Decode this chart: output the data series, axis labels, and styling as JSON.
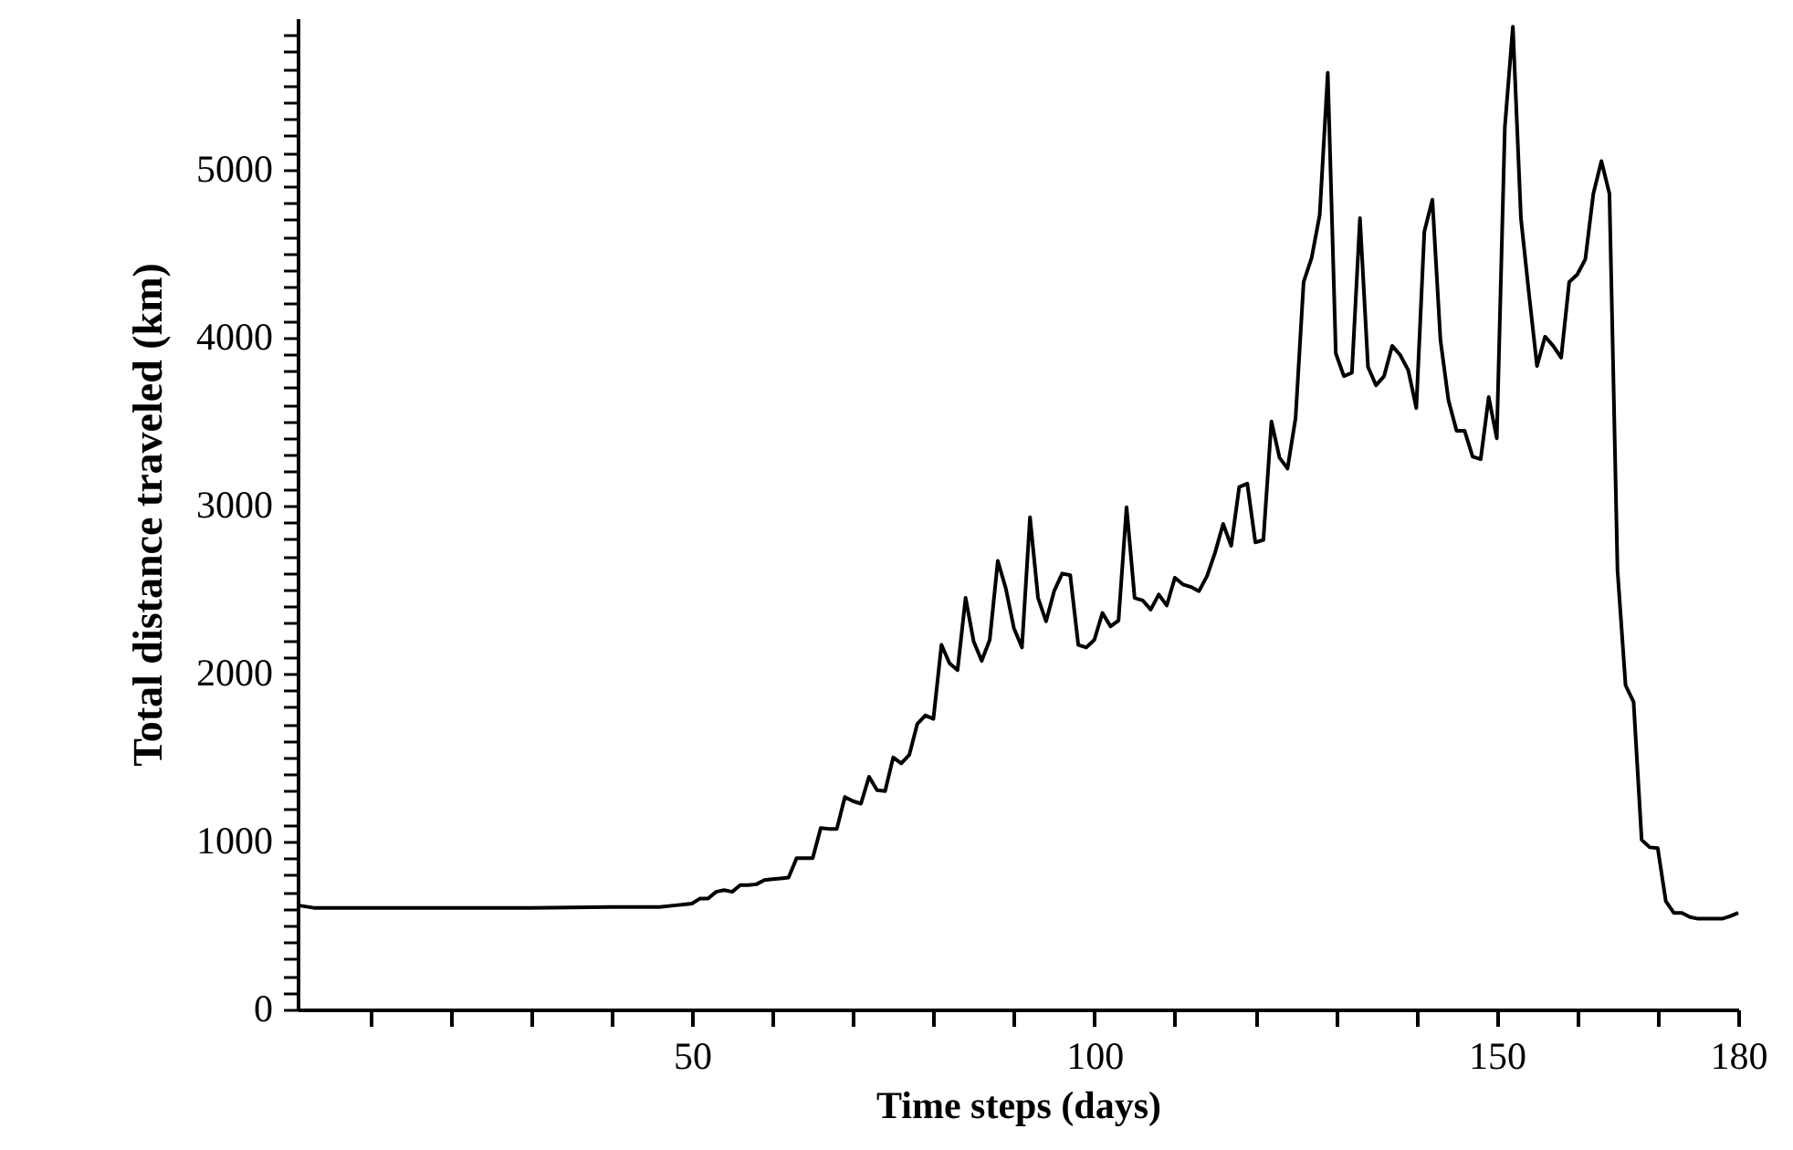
{
  "chart_data": {
    "type": "line",
    "xlabel": "Time steps (days)",
    "ylabel": "Total distance traveled (km)",
    "xlim": [
      1,
      180
    ],
    "xticks": [
      {
        "value": 10,
        "label": null
      },
      {
        "value": 20,
        "label": null
      },
      {
        "value": 30,
        "label": null
      },
      {
        "value": 40,
        "label": null
      },
      50,
      {
        "value": 60,
        "label": null
      },
      {
        "value": 70,
        "label": null
      },
      {
        "value": 80,
        "label": null
      },
      {
        "value": 90,
        "label": null
      },
      100,
      {
        "value": 110,
        "label": null
      },
      {
        "value": 120,
        "label": null
      },
      {
        "value": 130,
        "label": null
      },
      {
        "value": 140,
        "label": null
      },
      150,
      {
        "value": 160,
        "label": null
      },
      {
        "value": 170,
        "label": null
      },
      180
    ],
    "ylim": [
      0,
      5900
    ],
    "yticks": [
      0,
      {
        "value": 100,
        "label": null
      },
      {
        "value": 200,
        "label": null
      },
      {
        "value": 300,
        "label": null
      },
      {
        "value": 400,
        "label": null
      },
      {
        "value": 500,
        "label": null
      },
      {
        "value": 600,
        "label": null
      },
      {
        "value": 700,
        "label": null
      },
      {
        "value": 800,
        "label": null
      },
      {
        "value": 900,
        "label": null
      },
      1000,
      {
        "value": 1100,
        "label": null
      },
      {
        "value": 1200,
        "label": null
      },
      {
        "value": 1300,
        "label": null
      },
      {
        "value": 1400,
        "label": null
      },
      {
        "value": 1500,
        "label": null
      },
      {
        "value": 1600,
        "label": null
      },
      {
        "value": 1700,
        "label": null
      },
      {
        "value": 1800,
        "label": null
      },
      {
        "value": 1900,
        "label": null
      },
      2000,
      {
        "value": 2100,
        "label": null
      },
      {
        "value": 2200,
        "label": null
      },
      {
        "value": 2300,
        "label": null
      },
      {
        "value": 2400,
        "label": null
      },
      {
        "value": 2500,
        "label": null
      },
      {
        "value": 2600,
        "label": null
      },
      {
        "value": 2700,
        "label": null
      },
      {
        "value": 2800,
        "label": null
      },
      {
        "value": 2900,
        "label": null
      },
      3000,
      {
        "value": 3100,
        "label": null
      },
      {
        "value": 3200,
        "label": null
      },
      {
        "value": 3300,
        "label": null
      },
      {
        "value": 3400,
        "label": null
      },
      {
        "value": 3500,
        "label": null
      },
      {
        "value": 3600,
        "label": null
      },
      {
        "value": 3700,
        "label": null
      },
      {
        "value": 3800,
        "label": null
      },
      {
        "value": 3900,
        "label": null
      },
      4000,
      {
        "value": 4100,
        "label": null
      },
      {
        "value": 4200,
        "label": null
      },
      {
        "value": 4300,
        "label": null
      },
      {
        "value": 4400,
        "label": null
      },
      {
        "value": 4500,
        "label": null
      },
      {
        "value": 4600,
        "label": null
      },
      {
        "value": 4700,
        "label": null
      },
      {
        "value": 4800,
        "label": null
      },
      {
        "value": 4900,
        "label": null
      },
      5000,
      {
        "value": 5100,
        "label": null
      },
      {
        "value": 5200,
        "label": null
      },
      {
        "value": 5300,
        "label": null
      },
      {
        "value": 5400,
        "label": null
      },
      {
        "value": 5500,
        "label": null
      },
      {
        "value": 5600,
        "label": null
      },
      {
        "value": 5700,
        "label": null
      },
      {
        "value": 5800,
        "label": null
      }
    ],
    "grid": false,
    "marker": "none",
    "line_style": "solid",
    "series": [
      {
        "color": "#000000",
        "x": [
          1,
          3,
          10,
          20,
          30,
          40,
          46,
          48,
          49,
          50,
          51,
          52,
          53,
          54,
          55,
          56,
          57,
          58,
          59,
          60,
          61,
          62,
          63,
          64,
          65,
          66,
          67,
          68,
          69,
          70,
          71,
          72,
          73,
          74,
          75,
          76,
          77,
          78,
          79,
          80,
          81,
          82,
          83,
          84,
          85,
          86,
          87,
          88,
          89,
          90,
          91,
          92,
          93,
          94,
          95,
          96,
          97,
          98,
          99,
          100,
          101,
          102,
          103,
          104,
          105,
          106,
          107,
          108,
          109,
          110,
          111,
          112,
          113,
          114,
          115,
          116,
          117,
          118,
          119,
          120,
          121,
          122,
          123,
          124,
          125,
          126,
          127,
          128,
          129,
          130,
          131,
          132,
          133,
          134,
          135,
          136,
          137,
          138,
          139,
          140,
          141,
          142,
          143,
          144,
          145,
          146,
          147,
          148,
          149,
          150,
          151,
          152,
          153,
          154,
          155,
          156,
          157,
          158,
          159,
          160,
          161,
          162,
          163,
          164,
          165,
          166,
          167,
          168,
          169,
          170,
          171,
          172,
          173,
          174,
          175,
          176,
          177,
          178,
          179,
          180
        ],
        "values": [
          620,
          605,
          605,
          605,
          605,
          610,
          610,
          620,
          625,
          630,
          660,
          660,
          700,
          710,
          700,
          740,
          740,
          745,
          770,
          775,
          780,
          785,
          900,
          900,
          900,
          1080,
          1075,
          1075,
          1265,
          1240,
          1225,
          1385,
          1305,
          1300,
          1500,
          1465,
          1515,
          1700,
          1750,
          1730,
          2170,
          2060,
          2020,
          2450,
          2190,
          2075,
          2200,
          2670,
          2505,
          2270,
          2155,
          2930,
          2450,
          2310,
          2490,
          2595,
          2585,
          2170,
          2155,
          2200,
          2360,
          2280,
          2315,
          2990,
          2450,
          2435,
          2380,
          2470,
          2405,
          2570,
          2530,
          2515,
          2490,
          2580,
          2720,
          2890,
          2760,
          3110,
          3130,
          2780,
          2795,
          3500,
          3285,
          3220,
          3520,
          4330,
          4475,
          4730,
          5575,
          3905,
          3770,
          3790,
          4710,
          3825,
          3715,
          3770,
          3950,
          3895,
          3805,
          3580,
          4630,
          4820,
          3985,
          3625,
          3445,
          3445,
          3290,
          3275,
          3645,
          3400,
          5250,
          5850,
          4710,
          4260,
          3830,
          4005,
          3950,
          3880,
          4330,
          4375,
          4465,
          4855,
          5050,
          4855,
          2615,
          1930,
          1830,
          1010,
          965,
          960,
          645,
          575,
          575,
          550,
          540,
          540,
          540,
          540,
          555,
          575
        ]
      }
    ]
  }
}
